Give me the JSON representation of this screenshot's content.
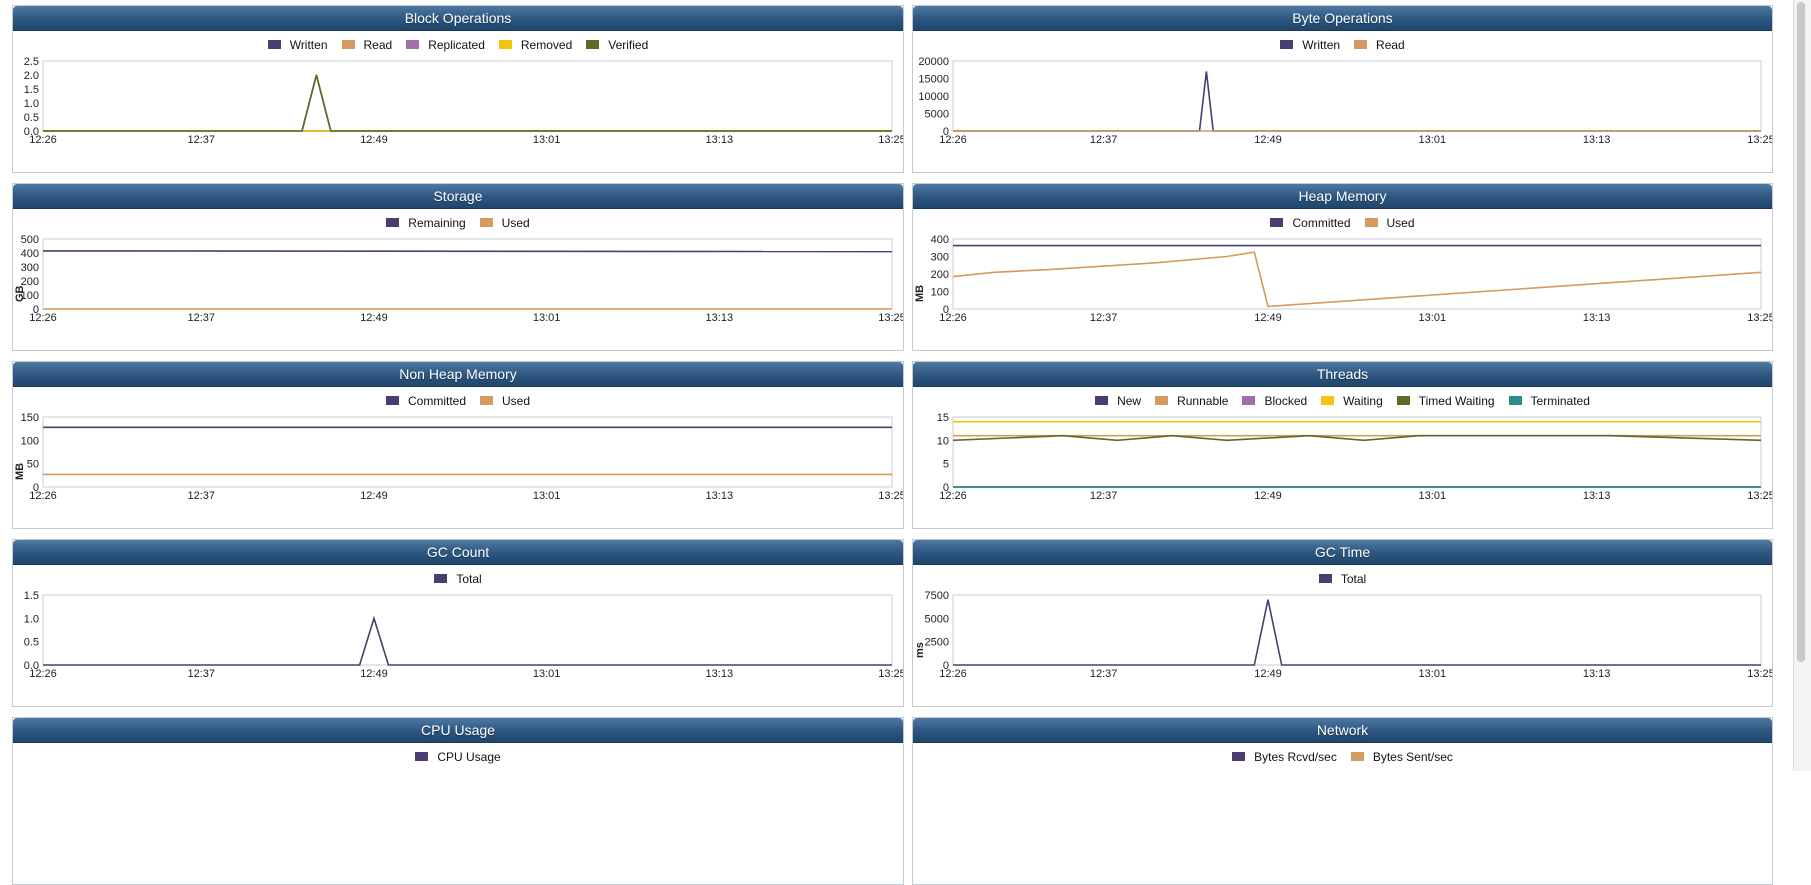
{
  "panels": [
    {
      "title": "Block Operations",
      "legend": [
        {
          "name": "Written",
          "color": "#4b3d71"
        },
        {
          "name": "Read",
          "color": "#d49a5f"
        },
        {
          "name": "Replicated",
          "color": "#a170a8"
        },
        {
          "name": "Removed",
          "color": "#f2c50f"
        },
        {
          "name": "Verified",
          "color": "#5e6b24"
        }
      ]
    },
    {
      "title": "Byte Operations",
      "legend": [
        {
          "name": "Written",
          "color": "#4b3d71"
        },
        {
          "name": "Read",
          "color": "#d49a5f"
        }
      ]
    },
    {
      "title": "Storage",
      "legend": [
        {
          "name": "Remaining",
          "color": "#4b3d71"
        },
        {
          "name": "Used",
          "color": "#d49a5f"
        }
      ]
    },
    {
      "title": "Heap Memory",
      "legend": [
        {
          "name": "Committed",
          "color": "#4b3d71"
        },
        {
          "name": "Used",
          "color": "#d49a5f"
        }
      ]
    },
    {
      "title": "Non Heap Memory",
      "legend": [
        {
          "name": "Committed",
          "color": "#4b3d71"
        },
        {
          "name": "Used",
          "color": "#d49a5f"
        }
      ]
    },
    {
      "title": "Threads",
      "legend": [
        {
          "name": "New",
          "color": "#4b3d71"
        },
        {
          "name": "Runnable",
          "color": "#d49a5f"
        },
        {
          "name": "Blocked",
          "color": "#a170a8"
        },
        {
          "name": "Waiting",
          "color": "#f2c50f"
        },
        {
          "name": "Timed Waiting",
          "color": "#5e6b24"
        },
        {
          "name": "Terminated",
          "color": "#2a8f8a"
        }
      ]
    },
    {
      "title": "GC Count",
      "legend": [
        {
          "name": "Total",
          "color": "#4b3d71"
        }
      ]
    },
    {
      "title": "GC Time",
      "legend": [
        {
          "name": "Total",
          "color": "#4b3d71"
        }
      ]
    },
    {
      "title": "CPU Usage",
      "legend": [
        {
          "name": "CPU Usage",
          "color": "#4b3d71"
        }
      ]
    },
    {
      "title": "Network",
      "legend": [
        {
          "name": "Bytes Rcvd/sec",
          "color": "#4b3d71"
        },
        {
          "name": "Bytes Sent/sec",
          "color": "#d49a5f"
        }
      ]
    }
  ],
  "chart_data": [
    {
      "type": "line",
      "title": "Block Operations",
      "x_ticks": [
        "12:26",
        "12:37",
        "12:49",
        "13:01",
        "13:13",
        "13:25"
      ],
      "x": [
        "12:26",
        "12:44",
        "12:45",
        "12:46",
        "13:25"
      ],
      "y_ticks": [
        "0.0",
        "0.5",
        "1.0",
        "1.5",
        "2.0",
        "2.5"
      ],
      "ylim": [
        0,
        2.5
      ],
      "ylabel": "",
      "series": [
        {
          "name": "Written",
          "values": [
            0,
            0,
            2,
            0,
            0
          ]
        },
        {
          "name": "Read",
          "values": [
            0,
            0,
            0,
            0,
            0
          ]
        },
        {
          "name": "Replicated",
          "values": [
            0,
            0,
            0,
            0,
            0
          ]
        },
        {
          "name": "Removed",
          "values": [
            0,
            0,
            0,
            0,
            0
          ]
        },
        {
          "name": "Verified",
          "values": [
            0,
            0,
            2,
            0,
            0
          ]
        }
      ]
    },
    {
      "type": "line",
      "title": "Byte Operations",
      "x_ticks": [
        "12:26",
        "12:37",
        "12:49",
        "13:01",
        "13:13",
        "13:25"
      ],
      "x": [
        "12:26",
        "12:44",
        "12:44:30",
        "12:45",
        "13:25"
      ],
      "y_ticks": [
        "0",
        "5000",
        "10000",
        "15000",
        "20000"
      ],
      "ylim": [
        0,
        20000
      ],
      "ylabel": "",
      "series": [
        {
          "name": "Written",
          "values": [
            0,
            0,
            17000,
            0,
            0
          ]
        },
        {
          "name": "Read",
          "values": [
            0,
            0,
            0,
            0,
            0
          ]
        }
      ]
    },
    {
      "type": "line",
      "title": "Storage",
      "x_ticks": [
        "12:26",
        "12:37",
        "12:49",
        "13:01",
        "13:13",
        "13:25"
      ],
      "x": [
        "12:26",
        "13:25"
      ],
      "y_ticks": [
        "0",
        "100",
        "200",
        "300",
        "400",
        "500"
      ],
      "ylim": [
        0,
        500
      ],
      "ylabel": "GB",
      "series": [
        {
          "name": "Remaining",
          "values": [
            415,
            410
          ]
        },
        {
          "name": "Used",
          "values": [
            1,
            1
          ]
        }
      ]
    },
    {
      "type": "line",
      "title": "Heap Memory",
      "x_ticks": [
        "12:26",
        "12:37",
        "12:49",
        "13:01",
        "13:13",
        "13:25"
      ],
      "x": [
        "12:26",
        "12:29",
        "12:33",
        "12:41",
        "12:46",
        "12:48",
        "12:49",
        "13:25"
      ],
      "y_ticks": [
        "0",
        "100",
        "200",
        "300",
        "400"
      ],
      "ylim": [
        0,
        400
      ],
      "ylabel": "MB",
      "series": [
        {
          "name": "Committed",
          "values": [
            362,
            362,
            362,
            362,
            362,
            362,
            362,
            362
          ]
        },
        {
          "name": "Used",
          "values": [
            185,
            210,
            225,
            265,
            300,
            325,
            15,
            210
          ]
        }
      ]
    },
    {
      "type": "line",
      "title": "Non Heap Memory",
      "x_ticks": [
        "12:26",
        "12:37",
        "12:49",
        "13:01",
        "13:13",
        "13:25"
      ],
      "x": [
        "12:26",
        "13:25"
      ],
      "y_ticks": [
        "0",
        "50",
        "100",
        "150"
      ],
      "ylim": [
        0,
        150
      ],
      "ylabel": "MB",
      "series": [
        {
          "name": "Committed",
          "values": [
            128,
            128
          ]
        },
        {
          "name": "Used",
          "values": [
            27,
            27
          ]
        }
      ]
    },
    {
      "type": "line",
      "title": "Threads",
      "x_ticks": [
        "12:26",
        "12:37",
        "12:49",
        "13:01",
        "13:13",
        "13:25"
      ],
      "x": [
        "12:26",
        "12:34",
        "12:38",
        "12:42",
        "12:46",
        "12:52",
        "12:56",
        "13:00",
        "13:14",
        "13:25"
      ],
      "y_ticks": [
        "0",
        "5",
        "10",
        "15"
      ],
      "ylim": [
        0,
        15
      ],
      "ylabel": "",
      "series": [
        {
          "name": "New",
          "values": [
            0,
            0,
            0,
            0,
            0,
            0,
            0,
            0,
            0,
            0
          ]
        },
        {
          "name": "Runnable",
          "values": [
            11,
            11,
            11,
            11,
            11,
            11,
            11,
            11,
            11,
            11
          ]
        },
        {
          "name": "Blocked",
          "values": [
            0,
            0,
            0,
            0,
            0,
            0,
            0,
            0,
            0,
            0
          ]
        },
        {
          "name": "Waiting",
          "values": [
            14,
            14,
            14,
            14,
            14,
            14,
            14,
            14,
            14,
            14
          ]
        },
        {
          "name": "Timed Waiting",
          "values": [
            10,
            11,
            10,
            11,
            10,
            11,
            10,
            11,
            11,
            10
          ]
        },
        {
          "name": "Terminated",
          "values": [
            0,
            0,
            0,
            0,
            0,
            0,
            0,
            0,
            0,
            0
          ]
        }
      ]
    },
    {
      "type": "line",
      "title": "GC Count",
      "x_ticks": [
        "12:26",
        "12:37",
        "12:49",
        "13:01",
        "13:13",
        "13:25"
      ],
      "x": [
        "12:26",
        "12:48",
        "12:49",
        "12:50",
        "13:25"
      ],
      "y_ticks": [
        "0.0",
        "0.5",
        "1.0",
        "1.5"
      ],
      "ylim": [
        0,
        1.5
      ],
      "ylabel": "",
      "series": [
        {
          "name": "Total",
          "values": [
            0,
            0,
            1,
            0,
            0
          ]
        }
      ]
    },
    {
      "type": "line",
      "title": "GC Time",
      "x_ticks": [
        "12:26",
        "12:37",
        "12:49",
        "13:01",
        "13:13",
        "13:25"
      ],
      "x": [
        "12:26",
        "12:48",
        "12:49",
        "12:50",
        "13:25"
      ],
      "y_ticks": [
        "0",
        "2500",
        "5000",
        "7500"
      ],
      "ylim": [
        0,
        7500
      ],
      "ylabel": "ms",
      "series": [
        {
          "name": "Total",
          "values": [
            0,
            0,
            7000,
            0,
            0
          ]
        }
      ]
    }
  ]
}
